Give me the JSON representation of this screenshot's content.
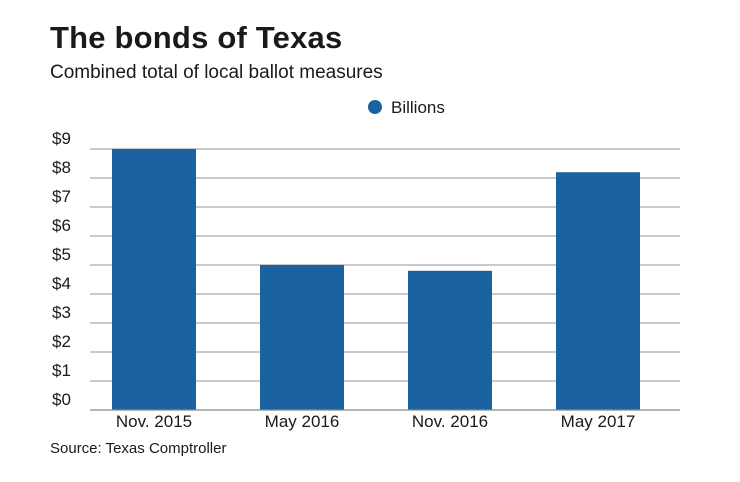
{
  "title": "The bonds of Texas",
  "subtitle": "Combined total of local ballot measures",
  "source": "Source: Texas Comptroller",
  "colors": {
    "bar": "#1b63a0",
    "grid": "#000000",
    "axis": "#888888"
  },
  "chart_data": {
    "type": "bar",
    "categories": [
      "Nov. 2015",
      "May 2016",
      "Nov. 2016",
      "May 2017"
    ],
    "series": [
      {
        "name": "Billions",
        "values": [
          9.0,
          5.0,
          4.8,
          8.2
        ]
      }
    ],
    "ylim": [
      0,
      9
    ],
    "yticks": [
      "$0",
      "$1",
      "$2",
      "$3",
      "$4",
      "$5",
      "$6",
      "$7",
      "$8",
      "$9"
    ],
    "legend": "top-center",
    "grid": true
  }
}
